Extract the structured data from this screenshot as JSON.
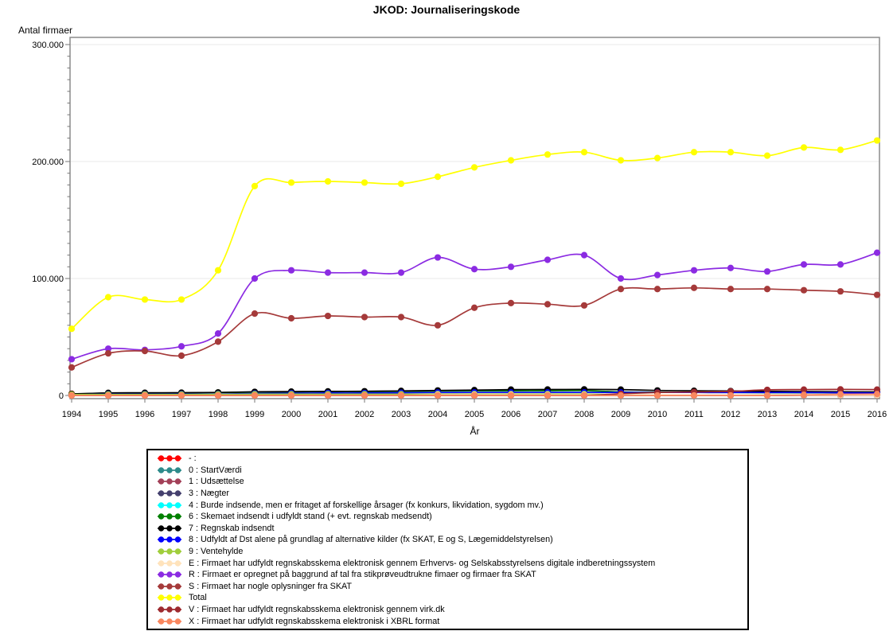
{
  "chart_data": {
    "type": "line",
    "title": "JKOD: Journaliseringskode",
    "xlabel": "År",
    "ylabel": "Antal firmaer",
    "x": [
      1994,
      1995,
      1996,
      1997,
      1998,
      1999,
      2000,
      2001,
      2002,
      2003,
      2004,
      2005,
      2006,
      2007,
      2008,
      2009,
      2010,
      2011,
      2012,
      2013,
      2014,
      2015,
      2016
    ],
    "ylim": [
      0,
      300000
    ],
    "yticks": [
      {
        "value": 0,
        "label": "0"
      },
      {
        "value": 100000,
        "label": "100.000"
      },
      {
        "value": 200000,
        "label": "200.000"
      },
      {
        "value": 300000,
        "label": "300.000"
      }
    ],
    "minor_tick_step": 10000,
    "grid": "horizontal-major-light",
    "smooth_lines": true,
    "markers": "filled-dot",
    "legend_position": "bottom-centered-box",
    "frame_color": "#8C8C8C",
    "gridline_color": "#E8E8E8",
    "series": [
      {
        "code": "-",
        "label": "- :",
        "color": "#FF0000",
        "values": [
          1500,
          500,
          200,
          100,
          100,
          100,
          100,
          100,
          100,
          100,
          100,
          100,
          100,
          100,
          100,
          100,
          100,
          100,
          100,
          100,
          100,
          100,
          100
        ]
      },
      {
        "code": "0",
        "label": "0 : StartVærdi",
        "color": "#2E8B8B",
        "values": [
          300,
          200,
          150,
          150,
          150,
          150,
          150,
          150,
          150,
          150,
          150,
          150,
          150,
          150,
          150,
          150,
          150,
          150,
          150,
          150,
          150,
          150,
          150
        ]
      },
      {
        "code": "1",
        "label": "1 : Udsættelse",
        "color": "#A34058",
        "values": [
          1200,
          900,
          400,
          300,
          300,
          300,
          300,
          300,
          300,
          300,
          300,
          300,
          300,
          300,
          300,
          200,
          200,
          200,
          200,
          200,
          200,
          200,
          200
        ]
      },
      {
        "code": "3",
        "label": "3 : Nægter",
        "color": "#45406E",
        "values": [
          200,
          250,
          250,
          250,
          250,
          300,
          300,
          300,
          300,
          300,
          300,
          300,
          300,
          300,
          300,
          300,
          300,
          300,
          300,
          300,
          300,
          300,
          300
        ]
      },
      {
        "code": "4",
        "label": "4 : Burde indsende, men er fritaget af forskellige årsager (fx konkurs, likvidation, sygdom mv.)",
        "color": "#00FFFF",
        "values": [
          400,
          500,
          500,
          500,
          500,
          600,
          600,
          600,
          600,
          600,
          700,
          700,
          700,
          700,
          700,
          500,
          500,
          500,
          500,
          500,
          500,
          500,
          500
        ]
      },
      {
        "code": "6",
        "label": "6 : Skemaet indsendt i udfyldt stand (+ evt. regnskab medsendt)",
        "color": "#008000",
        "values": [
          1000,
          2000,
          2000,
          2200,
          2500,
          2800,
          3000,
          3200,
          3300,
          3500,
          3800,
          4000,
          4000,
          4100,
          4200,
          3000,
          2800,
          2600,
          2500,
          2400,
          2300,
          2200,
          2100
        ]
      },
      {
        "code": "7",
        "label": "7 : Regnskab indsendt",
        "color": "#000000",
        "values": [
          1300,
          2200,
          2300,
          2400,
          2600,
          3100,
          3300,
          3500,
          3600,
          3900,
          4300,
          4600,
          5000,
          5100,
          5200,
          5000,
          4300,
          4000,
          3800,
          3500,
          3300,
          3100,
          3000
        ]
      },
      {
        "code": "8",
        "label": "8 : Udfyldt af Dst alene på grundlag af alternative kilder (fx SKAT, E og S, Lægemiddelstyrelsen)",
        "color": "#0000FF",
        "values": [
          600,
          1100,
          1100,
          1200,
          1300,
          1600,
          1900,
          2100,
          2100,
          2300,
          2500,
          2600,
          2600,
          2600,
          2600,
          2600,
          2600,
          2600,
          2500,
          2500,
          2500,
          2300,
          2100
        ]
      },
      {
        "code": "9",
        "label": "9 : Ventehylde",
        "color": "#A0CE3C",
        "values": [
          800,
          900,
          900,
          900,
          1000,
          1100,
          1100,
          1100,
          1100,
          1100,
          1200,
          1200,
          1200,
          1200,
          1200,
          600,
          500,
          400,
          400,
          400,
          400,
          300,
          300
        ]
      },
      {
        "code": "E",
        "label": "E : Firmaet har udfyldt regnskabsskema elektronisk gennem Erhvervs- og Selskabsstyrelsens digitale indberetningssystem",
        "color": "#FFE3BB",
        "values": [
          0,
          0,
          0,
          0,
          0,
          0,
          0,
          0,
          0,
          0,
          500,
          500,
          500,
          400,
          400,
          400,
          400,
          400,
          400,
          300,
          300,
          300,
          300
        ]
      },
      {
        "code": "R",
        "label": "R : Firmaet er opregnet på baggrund af tal fra stikprøveudtrukne fimaer og firmaer fra SKAT",
        "color": "#8B2BE2",
        "values": [
          31000,
          40000,
          39000,
          42000,
          53000,
          100000,
          107000,
          105000,
          105000,
          105000,
          118000,
          108000,
          110000,
          116000,
          120000,
          100000,
          103000,
          107000,
          109000,
          106000,
          112000,
          112000,
          122000
        ]
      },
      {
        "code": "S",
        "label": "S : Firmaet har nogle oplysninger fra SKAT",
        "color": "#A53A3A",
        "values": [
          24000,
          36000,
          38000,
          34000,
          46000,
          70000,
          66000,
          68000,
          67000,
          67000,
          60000,
          75000,
          79000,
          78000,
          77000,
          91000,
          91000,
          92000,
          91000,
          91000,
          90000,
          89000,
          86000
        ]
      },
      {
        "code": "Total",
        "label": "Total",
        "color": "#FFFF00",
        "values": [
          57000,
          84000,
          82000,
          82000,
          107000,
          179000,
          182000,
          183000,
          182000,
          181000,
          187000,
          195000,
          201000,
          206000,
          208000,
          201000,
          203000,
          208000,
          208000,
          205000,
          212000,
          210000,
          218000
        ]
      },
      {
        "code": "V",
        "label": "V : Firmaet har udfyldt regnskabsskema elektronisk gennem virk.dk",
        "color": "#9E2A2F",
        "values": [
          0,
          0,
          0,
          0,
          0,
          0,
          0,
          0,
          0,
          0,
          0,
          0,
          0,
          0,
          0,
          1500,
          2500,
          3000,
          3500,
          4800,
          5000,
          5200,
          5000
        ]
      },
      {
        "code": "X",
        "label": "X : Firmaet har udfyldt regnskabsskema elektronisk i XBRL format",
        "color": "#F9875F",
        "values": [
          0,
          0,
          0,
          0,
          0,
          0,
          0,
          0,
          0,
          0,
          0,
          0,
          0,
          0,
          0,
          0,
          0,
          0,
          0,
          0,
          500,
          1000,
          1200
        ]
      }
    ]
  }
}
